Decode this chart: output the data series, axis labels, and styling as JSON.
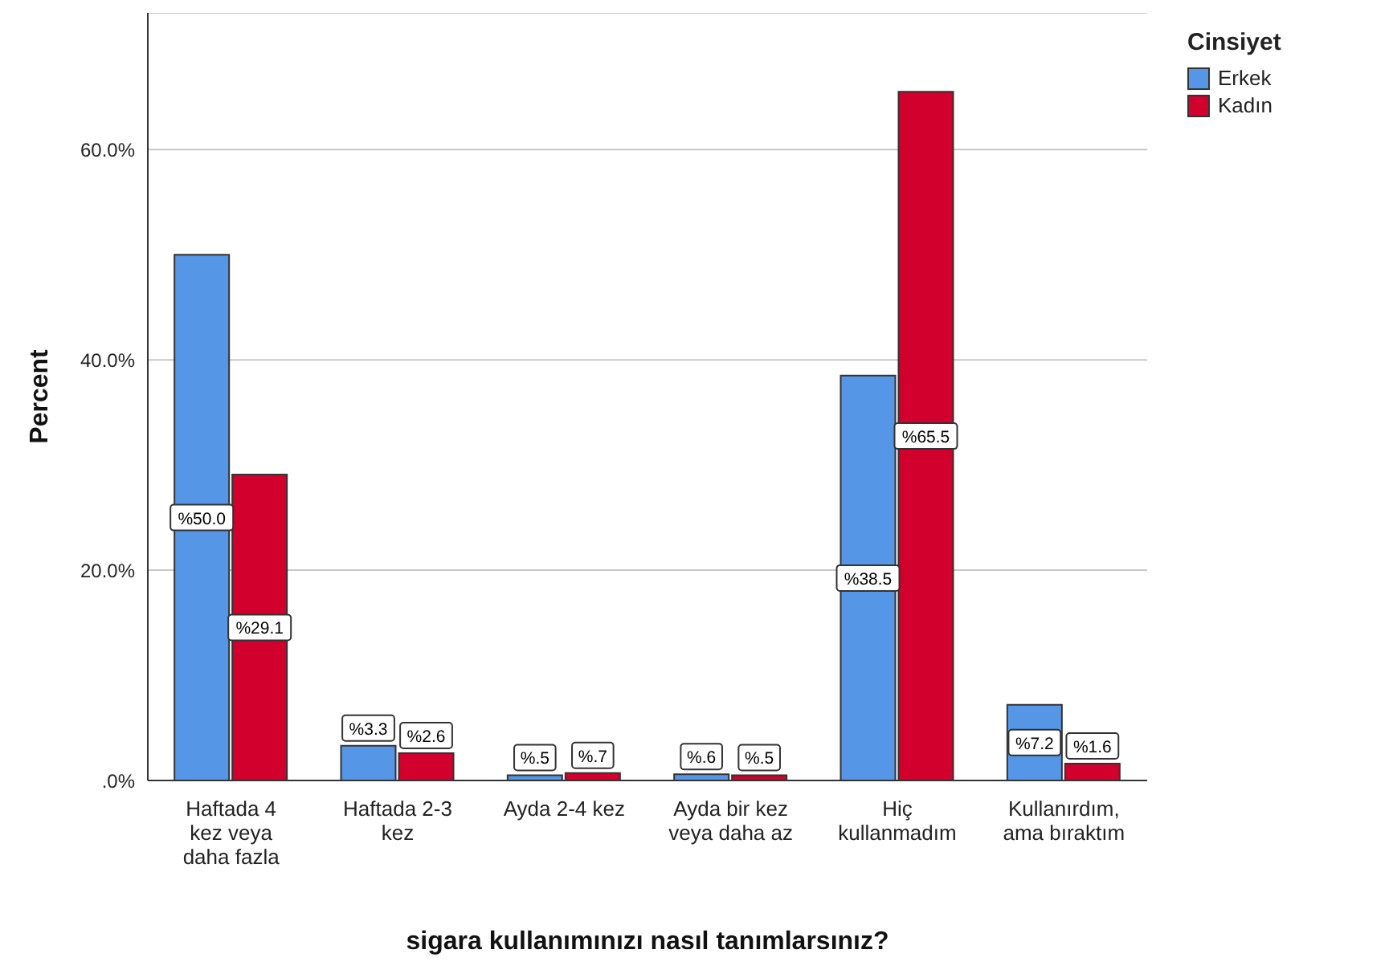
{
  "chart_data": {
    "type": "bar",
    "xlabel": "sigara kullanımınızı nasıl tanımlarsınız?",
    "ylabel": "Percent",
    "legend_title": "Cinsiyet",
    "legend": "top right",
    "grid": "y",
    "categories": [
      "Haftada 4 kez veya daha fazla",
      "Haftada 2-3 kez",
      "Ayda 2-4 kez",
      "Ayda bir kez veya daha az",
      "Hiç kullanmadım",
      "Kullanırdım, ama bıraktım"
    ],
    "series": [
      {
        "name": "Erkek",
        "color": "#5596e6",
        "values": [
          50.0,
          3.3,
          0.5,
          0.6,
          38.5,
          7.2
        ],
        "value_labels": [
          "%50.0",
          "%3.3",
          "%.5",
          "%.6",
          "%38.5",
          "%7.2"
        ]
      },
      {
        "name": "Kadın",
        "color": "#d1002d",
        "values": [
          29.1,
          2.6,
          0.7,
          0.5,
          65.5,
          1.6
        ],
        "value_labels": [
          "%29.1",
          "%2.6",
          "%.7",
          "%.5",
          "%65.5",
          "%1.6"
        ]
      }
    ],
    "ylim": [
      0,
      73
    ],
    "yticks": [
      {
        "value": 0,
        "label": ".0%"
      },
      {
        "value": 20,
        "label": "20.0%"
      },
      {
        "value": 40,
        "label": "40.0%"
      },
      {
        "value": 60,
        "label": "60.0%"
      }
    ]
  }
}
